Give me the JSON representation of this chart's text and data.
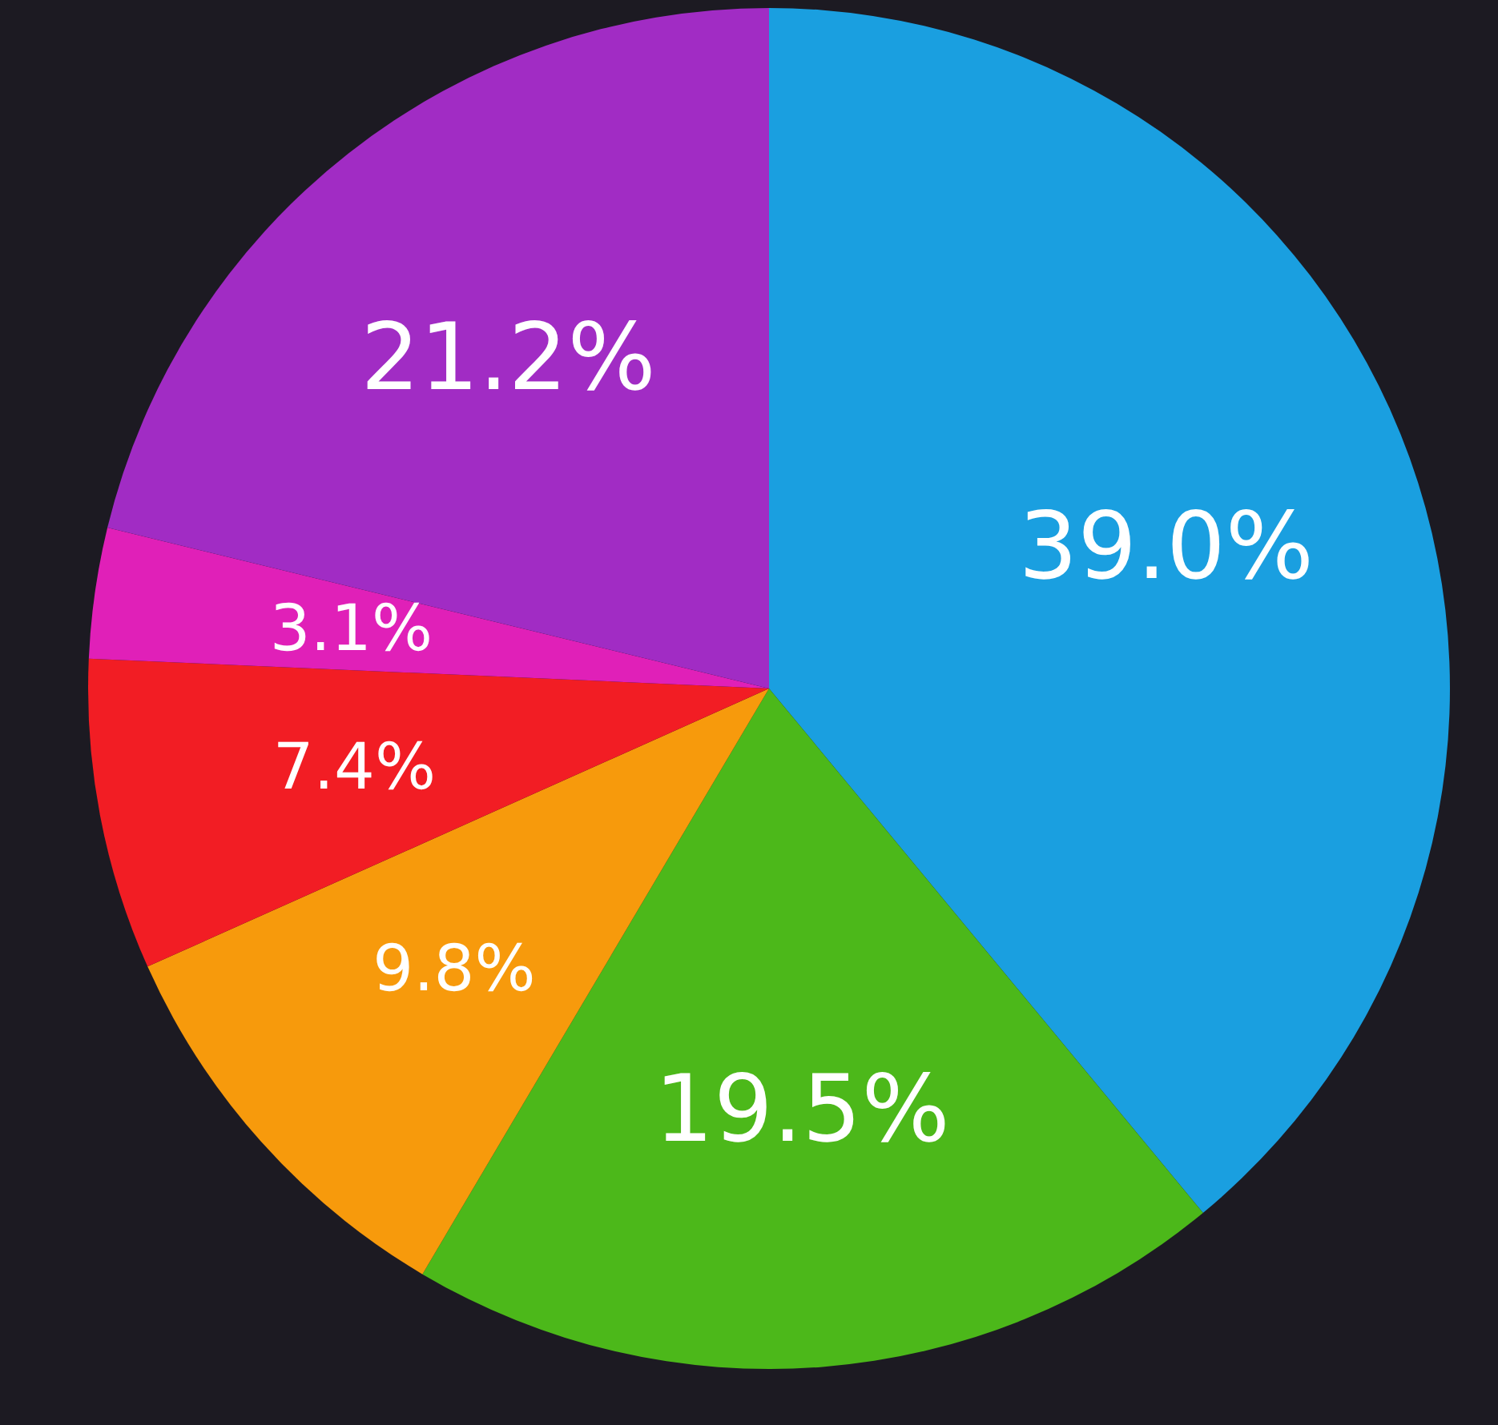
{
  "chart_data": {
    "type": "pie",
    "categories": [
      null,
      null,
      null,
      null,
      null,
      null
    ],
    "values": [
      39.0,
      19.5,
      9.8,
      7.4,
      3.1,
      21.2
    ],
    "colors": [
      "#1a9fe0",
      "#4cb81a",
      "#f79a0c",
      "#f21d24",
      "#e020b8",
      "#a12cc4"
    ],
    "value_labels": [
      "39.0%",
      "19.5%",
      "9.8%",
      "7.4%",
      "3.1%",
      "21.2%"
    ]
  }
}
